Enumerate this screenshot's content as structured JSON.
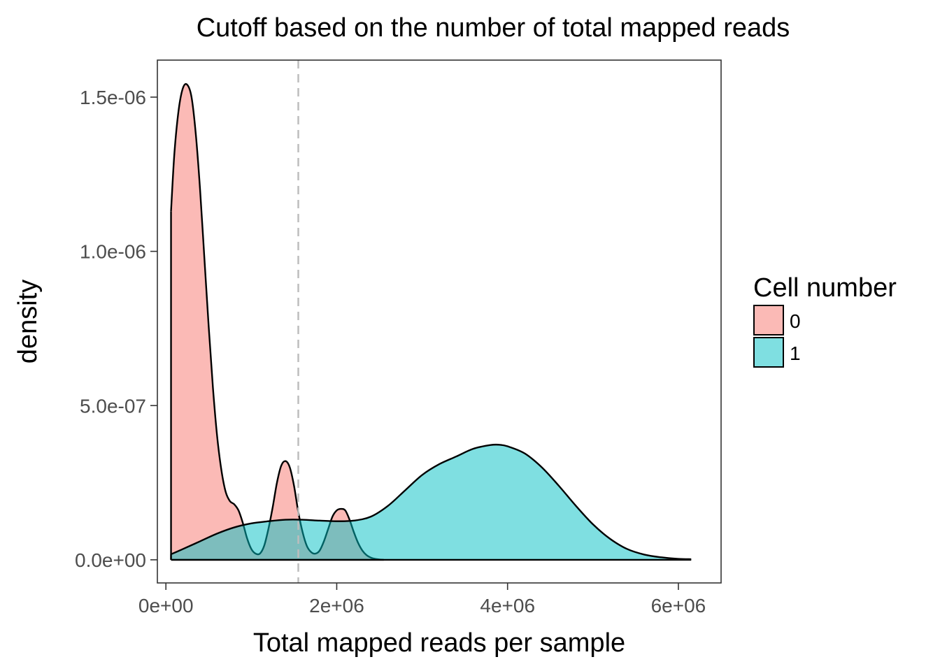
{
  "chart_data": {
    "type": "area",
    "title": "Cutoff based on the number of total mapped reads",
    "xlabel": "Total mapped reads per sample",
    "ylabel": "density",
    "xlim": [
      -100000,
      6500000
    ],
    "ylim": [
      -7.5e-08,
      1.62e-06
    ],
    "x_ticks": [
      0,
      2000000,
      4000000,
      6000000
    ],
    "x_tick_labels": [
      "0e+00",
      "2e+06",
      "4e+06",
      "6e+06"
    ],
    "y_ticks": [
      0,
      5e-07,
      1e-06,
      1.5e-06
    ],
    "y_tick_labels": [
      "0.0e+00",
      "5.0e-07",
      "1.0e-06",
      "1.5e-06"
    ],
    "grid": false,
    "cutoff_line": {
      "x": 1550000,
      "style": "dashed",
      "color": "#bdbdbd"
    },
    "legend": {
      "title": "Cell number",
      "position": "right"
    },
    "series": [
      {
        "name": "0",
        "color": "#f8766d",
        "fill": "#f9b9b3",
        "x": [
          60000,
          100000,
          150000,
          200000,
          250000,
          300000,
          350000,
          400000,
          450000,
          500000,
          550000,
          600000,
          650000,
          700000,
          750000,
          800000,
          850000,
          900000,
          950000,
          1000000,
          1050000,
          1100000,
          1150000,
          1200000,
          1250000,
          1300000,
          1350000,
          1400000,
          1450000,
          1500000,
          1550000,
          1600000,
          1650000,
          1700000,
          1750000,
          1800000,
          1850000,
          1900000,
          1950000,
          2000000,
          2050000,
          2100000,
          2150000,
          2200000,
          2250000,
          2300000,
          2350000,
          2400000,
          2450000,
          2500000,
          2550000
        ],
        "y": [
          1.13e-06,
          1.32e-06,
          1.46e-06,
          1.53e-06,
          1.54e-06,
          1.5e-06,
          1.38e-06,
          1.2e-06,
          9.8e-07,
          7.6e-07,
          5.6e-07,
          4e-07,
          2.9e-07,
          2.2e-07,
          1.9e-07,
          1.8e-07,
          1.6e-07,
          1.2e-07,
          7e-08,
          3.5e-08,
          2e-08,
          2e-08,
          4.5e-08,
          1e-07,
          1.7e-07,
          2.5e-07,
          3.05e-07,
          3.2e-07,
          3e-07,
          2.4e-07,
          1.55e-07,
          9e-08,
          4.5e-08,
          2.5e-08,
          2e-08,
          3e-08,
          6e-08,
          1e-07,
          1.4e-07,
          1.6e-07,
          1.65e-07,
          1.6e-07,
          1.3e-07,
          9e-08,
          5.5e-08,
          3e-08,
          1.5e-08,
          7e-09,
          3e-09,
          1e-09,
          0
        ]
      },
      {
        "name": "1",
        "color": "#00bfc4",
        "fill": "#7fdfe1",
        "x": [
          60000,
          200000,
          400000,
          600000,
          800000,
          1000000,
          1200000,
          1400000,
          1600000,
          1800000,
          2000000,
          2200000,
          2400000,
          2600000,
          2800000,
          3000000,
          3200000,
          3400000,
          3600000,
          3800000,
          3900000,
          4000000,
          4200000,
          4400000,
          4600000,
          4800000,
          5000000,
          5200000,
          5400000,
          5600000,
          5800000,
          6000000,
          6150000
        ],
        "y": [
          1.8e-08,
          3.5e-08,
          6e-08,
          8.5e-08,
          1.05e-07,
          1.18e-07,
          1.25e-07,
          1.3e-07,
          1.3e-07,
          1.27e-07,
          1.25e-07,
          1.27e-07,
          1.4e-07,
          1.75e-07,
          2.25e-07,
          2.75e-07,
          3.1e-07,
          3.35e-07,
          3.6e-07,
          3.72e-07,
          3.73e-07,
          3.68e-07,
          3.45e-07,
          3e-07,
          2.4e-07,
          1.75e-07,
          1.15e-07,
          6.8e-08,
          3.5e-08,
          1.7e-08,
          8e-09,
          3e-09,
          2e-09
        ]
      }
    ]
  }
}
